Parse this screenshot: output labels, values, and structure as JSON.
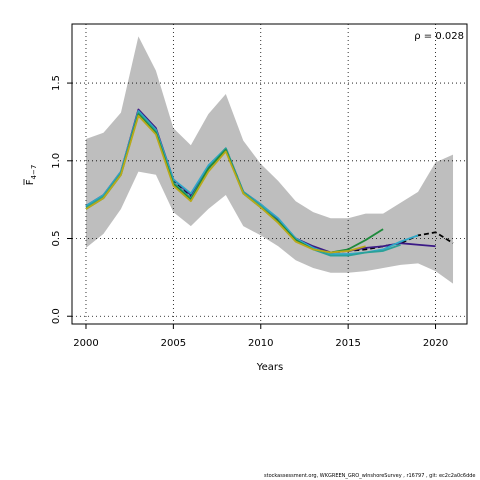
{
  "chart_data": {
    "type": "line",
    "xlabel": "Years",
    "ylabel_main": "F",
    "ylabel_sub": "4−7",
    "xlim": [
      1999.2,
      2021.8
    ],
    "ylim": [
      -0.05,
      1.88
    ],
    "x_ticks": [
      2000,
      2005,
      2010,
      2015,
      2020
    ],
    "y_ticks": [
      0.0,
      0.5,
      1.0,
      1.5
    ],
    "x_tick_labels": [
      "2000",
      "2005",
      "2010",
      "2015",
      "2020"
    ],
    "y_tick_labels": [
      "0.0",
      "0.5",
      "1.0",
      "1.5"
    ],
    "grid": true,
    "annotation": "ρ = 0.028",
    "band": {
      "x": [
        2000,
        2001,
        2002,
        2003,
        2004,
        2005,
        2006,
        2007,
        2008,
        2009,
        2010,
        2011,
        2012,
        2013,
        2014,
        2015,
        2016,
        2017,
        2018,
        2019,
        2020,
        2021
      ],
      "upper": [
        1.14,
        1.18,
        1.31,
        1.8,
        1.58,
        1.21,
        1.1,
        1.3,
        1.43,
        1.13,
        0.98,
        0.87,
        0.74,
        0.67,
        0.63,
        0.63,
        0.66,
        0.66,
        0.73,
        0.8,
        0.99,
        1.04
      ],
      "lower": [
        0.44,
        0.53,
        0.69,
        0.93,
        0.91,
        0.67,
        0.58,
        0.69,
        0.78,
        0.58,
        0.52,
        0.45,
        0.36,
        0.31,
        0.28,
        0.28,
        0.29,
        0.31,
        0.33,
        0.34,
        0.29,
        0.21
      ]
    },
    "series": [
      {
        "color": "#000000",
        "dashed": true,
        "x": [
          2000,
          2001,
          2002,
          2003,
          2004,
          2005,
          2006,
          2007,
          2008,
          2009,
          2010,
          2011,
          2012,
          2013,
          2014,
          2015,
          2016,
          2017,
          2018,
          2019,
          2020,
          2021
        ],
        "values": [
          0.7,
          0.77,
          0.92,
          1.32,
          1.2,
          0.87,
          0.77,
          0.95,
          1.08,
          0.8,
          0.71,
          0.62,
          0.5,
          0.44,
          0.41,
          0.42,
          0.43,
          0.45,
          0.47,
          0.52,
          0.54,
          0.47
        ]
      },
      {
        "color": "#3b1a86",
        "dashed": false,
        "x": [
          2000,
          2001,
          2002,
          2003,
          2004,
          2005,
          2006,
          2007,
          2008,
          2009,
          2010,
          2011,
          2012,
          2013,
          2014,
          2015,
          2016,
          2017,
          2018,
          2019,
          2020
        ],
        "values": [
          0.71,
          0.78,
          0.93,
          1.33,
          1.21,
          0.88,
          0.78,
          0.96,
          1.08,
          0.8,
          0.72,
          0.62,
          0.5,
          0.45,
          0.41,
          0.42,
          0.44,
          0.45,
          0.47,
          0.46,
          0.45
        ]
      },
      {
        "color": "#31a8c8",
        "dashed": false,
        "x": [
          2000,
          2001,
          2002,
          2003,
          2004,
          2005,
          2006,
          2007,
          2008,
          2009,
          2010,
          2011,
          2012,
          2013,
          2014,
          2015,
          2016,
          2017,
          2018,
          2019
        ],
        "values": [
          0.71,
          0.78,
          0.93,
          1.32,
          1.2,
          0.88,
          0.79,
          0.97,
          1.08,
          0.8,
          0.72,
          0.63,
          0.5,
          0.44,
          0.4,
          0.4,
          0.41,
          0.43,
          0.48,
          0.52
        ]
      },
      {
        "color": "#2aa198",
        "dashed": false,
        "x": [
          2000,
          2001,
          2002,
          2003,
          2004,
          2005,
          2006,
          2007,
          2008,
          2009,
          2010,
          2011,
          2012,
          2013,
          2014,
          2015,
          2016,
          2017,
          2018
        ],
        "values": [
          0.7,
          0.77,
          0.92,
          1.31,
          1.19,
          0.86,
          0.76,
          0.95,
          1.08,
          0.8,
          0.71,
          0.61,
          0.49,
          0.43,
          0.39,
          0.39,
          0.41,
          0.42,
          0.46
        ]
      },
      {
        "color": "#1e8a3c",
        "dashed": false,
        "x": [
          2000,
          2001,
          2002,
          2003,
          2004,
          2005,
          2006,
          2007,
          2008,
          2009,
          2010,
          2011,
          2012,
          2013,
          2014,
          2015,
          2016,
          2017
        ],
        "values": [
          0.69,
          0.76,
          0.91,
          1.3,
          1.18,
          0.85,
          0.75,
          0.95,
          1.07,
          0.79,
          0.7,
          0.61,
          0.49,
          0.43,
          0.41,
          0.43,
          0.49,
          0.56
        ]
      },
      {
        "color": "#b9a91a",
        "dashed": false,
        "x": [
          2000,
          2001,
          2002,
          2003,
          2004,
          2005,
          2006,
          2007,
          2008,
          2009,
          2010,
          2011,
          2012,
          2013,
          2014,
          2015,
          2016
        ],
        "values": [
          0.69,
          0.76,
          0.91,
          1.29,
          1.17,
          0.84,
          0.74,
          0.93,
          1.06,
          0.79,
          0.7,
          0.6,
          0.48,
          0.43,
          0.41,
          0.42,
          0.45
        ]
      }
    ]
  },
  "footer_text": "stockassessment.org, WKGREEN_GRO_wInshoreSurvey , r16797 , git: ec2c2a0c6dde"
}
